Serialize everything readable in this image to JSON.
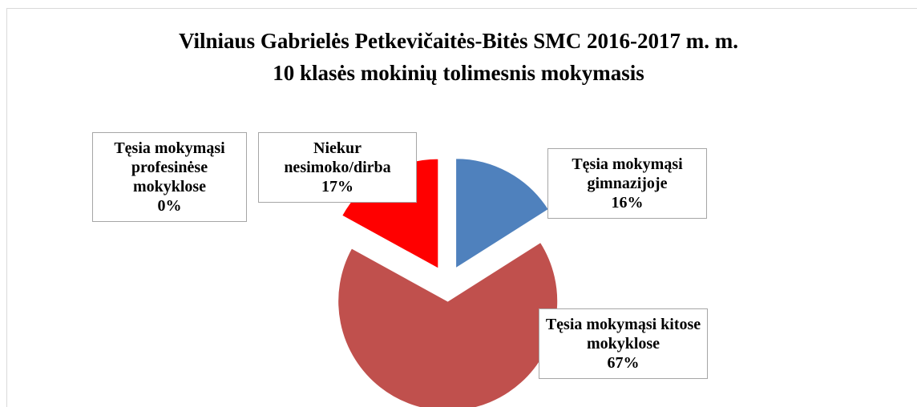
{
  "chart_data": {
    "type": "pie",
    "title": "Vilniaus Gabrielės Petkevičaitės-Bitės SMC  2016-2017 m. m.",
    "subtitle": "10 klasės mokinių tolimesnis mokymasis",
    "categories": [
      "Tęsia mokymąsi gimnazijoje",
      "Tęsia mokymąsi kitose mokyklose",
      "Tęsia mokymąsi profesinėse mokyklose",
      "Niekur nesimoko/dirba"
    ],
    "values": [
      16,
      67,
      0,
      17
    ],
    "value_labels": [
      "16%",
      "67%",
      "0%",
      "17%"
    ],
    "colors": [
      "#4f81bd",
      "#c0504d",
      "#9bbb59",
      "#ff0000"
    ]
  }
}
